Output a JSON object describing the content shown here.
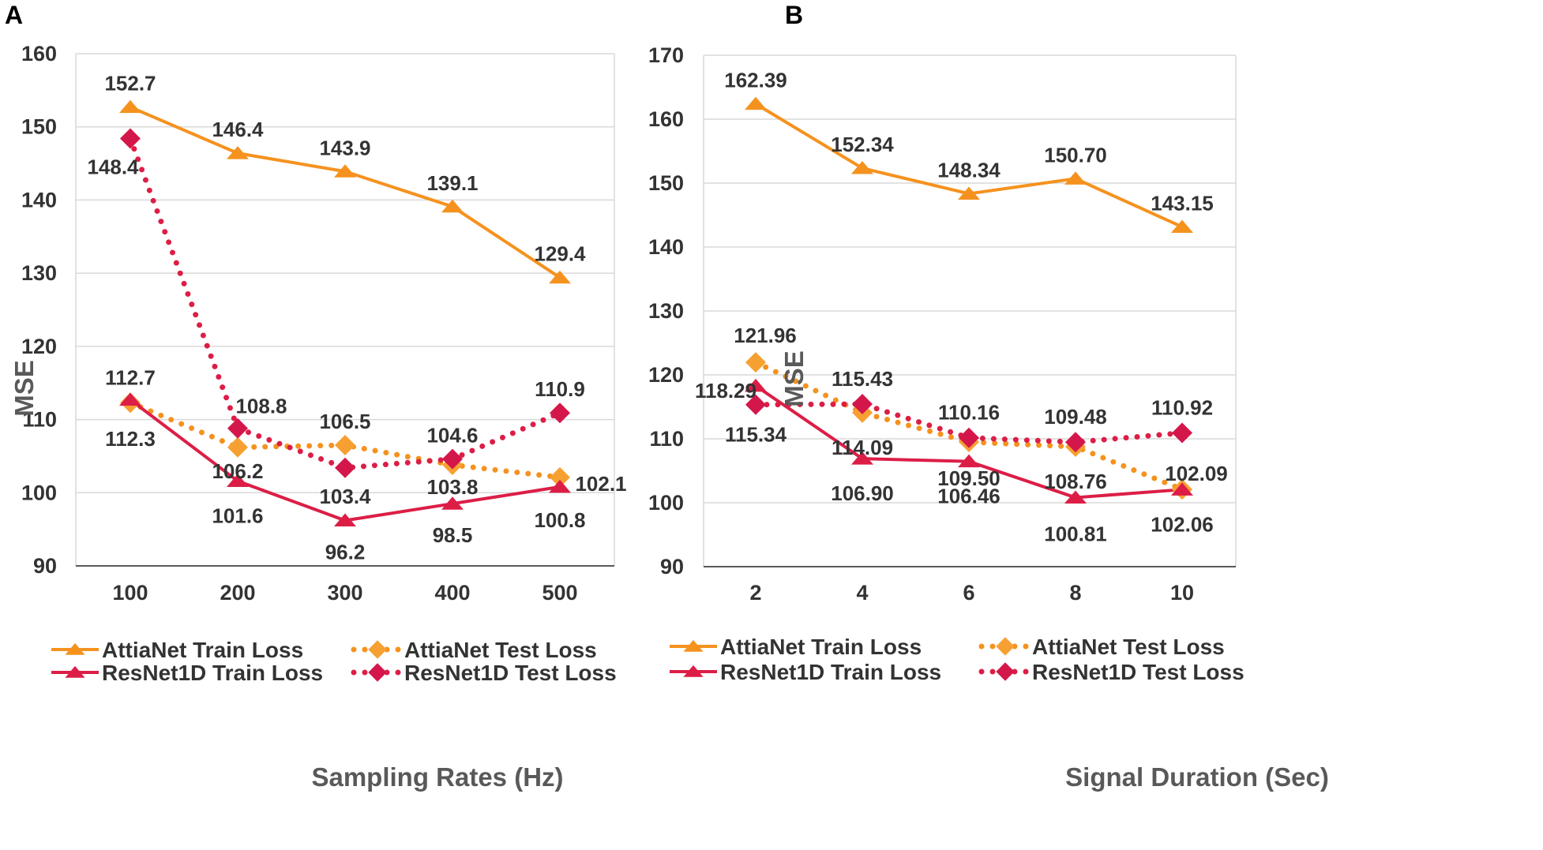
{
  "colors": {
    "attia_train": "#f5921e",
    "attia_test": "#f5921e",
    "attia_test_marker": "#f7a032",
    "resnet_train": "#dc1e46",
    "resnet_test": "#dc1e46",
    "resnet_test_marker": "#d4174b",
    "grid": "#d9d9d9",
    "axis": "#595959"
  },
  "chart_data": [
    {
      "type": "line",
      "panel_label": "A",
      "xlabel": "Sampling Rates (Hz)",
      "ylabel": "MSE",
      "categories": [
        "100",
        "200",
        "300",
        "400",
        "500"
      ],
      "ylim": [
        90,
        160
      ],
      "yticks": [
        "90",
        "100",
        "110",
        "120",
        "130",
        "140",
        "150",
        "160"
      ],
      "grid": true,
      "legend_position": "bottom",
      "series": [
        {
          "name": "AttiaNet Train Loss",
          "key": "attia_train",
          "values": [
            152.7,
            146.4,
            143.9,
            139.1,
            129.4
          ],
          "labels": [
            "152.7",
            "146.4",
            "143.9",
            "139.1",
            "129.4"
          ]
        },
        {
          "name": "AttiaNet Test Loss",
          "key": "attia_test",
          "values": [
            112.3,
            106.2,
            106.5,
            103.8,
            102.1
          ],
          "labels": [
            "112.3",
            "106.2",
            "106.5",
            "103.8",
            "102.1"
          ]
        },
        {
          "name": "ResNet1D Train Loss",
          "key": "resnet_train",
          "values": [
            112.7,
            101.6,
            96.2,
            98.5,
            100.8
          ],
          "labels": [
            "112.7",
            "101.6",
            "96.2",
            "98.5",
            "100.8"
          ]
        },
        {
          "name": "ResNet1D Test Loss",
          "key": "resnet_test",
          "values": [
            148.4,
            108.8,
            103.4,
            104.6,
            110.9
          ],
          "labels": [
            "148.4",
            "108.8",
            "103.4",
            "104.6",
            "110.9"
          ]
        }
      ]
    },
    {
      "type": "line",
      "panel_label": "B",
      "xlabel": "Signal Duration (Sec)",
      "ylabel": "MSE",
      "categories": [
        "2",
        "4",
        "6",
        "8",
        "10"
      ],
      "ylim": [
        90,
        170
      ],
      "yticks": [
        "90",
        "100",
        "110",
        "120",
        "130",
        "140",
        "150",
        "160",
        "170"
      ],
      "grid": true,
      "legend_position": "bottom",
      "series": [
        {
          "name": "AttiaNet Train Loss",
          "key": "attia_train",
          "values": [
            162.39,
            152.34,
            148.34,
            150.7,
            143.15
          ],
          "labels": [
            "162.39",
            "152.34",
            "148.34",
            "150.70",
            "143.15"
          ]
        },
        {
          "name": "AttiaNet Test Loss",
          "key": "attia_test",
          "values": [
            121.96,
            114.09,
            109.5,
            108.76,
            102.09
          ],
          "labels": [
            "121.96",
            "114.09",
            "109.50",
            "108.76",
            "102.09"
          ]
        },
        {
          "name": "ResNet1D Train Loss",
          "key": "resnet_train",
          "values": [
            118.29,
            106.9,
            106.46,
            100.81,
            102.06
          ],
          "labels": [
            "118.29",
            "106.90",
            "106.46",
            "100.81",
            "102.06"
          ]
        },
        {
          "name": "ResNet1D Test Loss",
          "key": "resnet_test",
          "values": [
            115.34,
            115.43,
            110.16,
            109.48,
            110.92
          ],
          "labels": [
            "115.34",
            "115.43",
            "110.16",
            "109.48",
            "110.92"
          ]
        }
      ]
    }
  ]
}
